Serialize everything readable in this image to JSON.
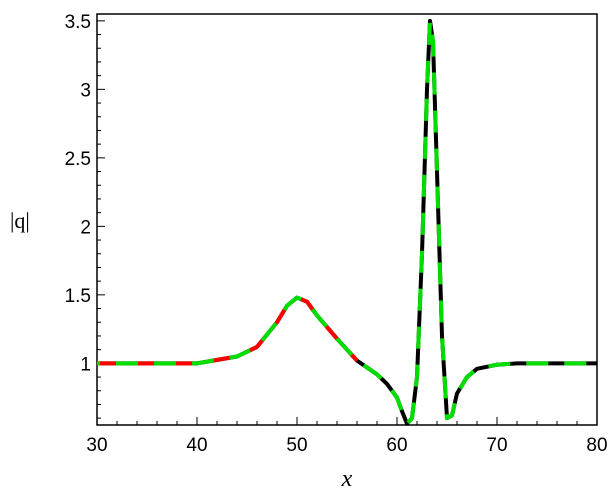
{
  "chart_data": {
    "type": "line",
    "xlabel": "x",
    "ylabel": "|q|",
    "xlim": [
      30,
      80
    ],
    "ylim": [
      0.55,
      3.55
    ],
    "x_ticks": [
      30,
      40,
      50,
      60,
      70,
      80
    ],
    "x_tick_labels": [
      "30",
      "40",
      "50",
      "60",
      "70",
      "80"
    ],
    "y_ticks": [
      1,
      1.5,
      2,
      2.5,
      3,
      3.5
    ],
    "y_tick_labels": [
      "1",
      "1.5",
      "2",
      "2.5",
      "3",
      "3.5"
    ],
    "grid": false,
    "legend": "none",
    "series": [
      {
        "style": "solid",
        "color": "#000000",
        "x": [
          30,
          40,
          44,
          46,
          48,
          49,
          50,
          51,
          52,
          54,
          56,
          58,
          59,
          60,
          60.5,
          61,
          61.5,
          62,
          62.5,
          63,
          63.3,
          63.6,
          64,
          64.5,
          65,
          65.5,
          66,
          67,
          68,
          70,
          72,
          75,
          80
        ],
        "y": [
          1.0,
          1.0,
          1.05,
          1.12,
          1.3,
          1.42,
          1.48,
          1.45,
          1.35,
          1.18,
          1.02,
          0.92,
          0.85,
          0.75,
          0.65,
          0.56,
          0.6,
          0.9,
          1.8,
          3.0,
          3.5,
          3.35,
          2.4,
          1.2,
          0.6,
          0.62,
          0.78,
          0.9,
          0.96,
          0.99,
          1.0,
          1.0,
          1.0
        ]
      },
      {
        "style": "dashed",
        "color": "#ff0000",
        "x": [
          30,
          40,
          44,
          46,
          48,
          49,
          50,
          51,
          52,
          54,
          56
        ],
        "y": [
          1.0,
          1.0,
          1.05,
          1.12,
          1.3,
          1.42,
          1.48,
          1.45,
          1.35,
          1.18,
          1.02
        ]
      },
      {
        "style": "dashed",
        "color": "#00dd00",
        "x": [
          30,
          40,
          44,
          46,
          48,
          49,
          50,
          51,
          52,
          54,
          56,
          58,
          59,
          60,
          60.5,
          61,
          61.5,
          62,
          62.5,
          63,
          63.3,
          63.6,
          64,
          64.5,
          65,
          65.5,
          66,
          67,
          68,
          70,
          72,
          75,
          80
        ],
        "y": [
          1.0,
          1.0,
          1.05,
          1.12,
          1.3,
          1.42,
          1.48,
          1.45,
          1.35,
          1.18,
          1.02,
          0.92,
          0.85,
          0.75,
          0.65,
          0.56,
          0.6,
          0.9,
          1.8,
          3.0,
          3.5,
          3.35,
          2.4,
          1.2,
          0.6,
          0.62,
          0.78,
          0.9,
          0.96,
          0.99,
          1.0,
          1.0,
          1.0
        ]
      }
    ]
  }
}
